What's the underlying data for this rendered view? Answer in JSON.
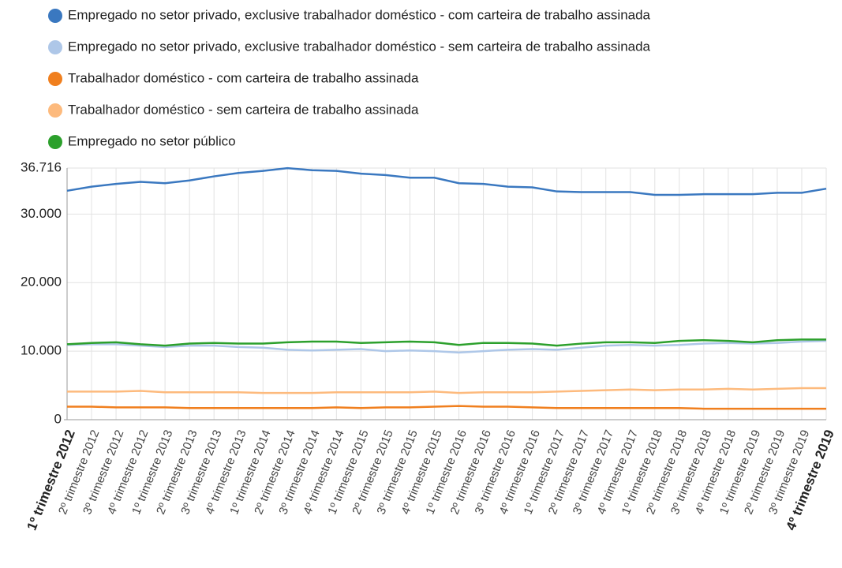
{
  "chart_data": {
    "type": "line",
    "categories": [
      "1º trimestre 2012",
      "2º trimestre 2012",
      "3º trimestre 2012",
      "4º trimestre 2012",
      "1º trimestre 2013",
      "2º trimestre 2013",
      "3º trimestre 2013",
      "4º trimestre 2013",
      "1º trimestre 2014",
      "2º trimestre 2014",
      "3º trimestre 2014",
      "4º trimestre 2014",
      "1º trimestre 2015",
      "2º trimestre 2015",
      "3º trimestre 2015",
      "4º trimestre 2015",
      "1º trimestre 2016",
      "2º trimestre 2016",
      "3º trimestre 2016",
      "4º trimestre 2016",
      "1º trimestre 2017",
      "2º trimestre 2017",
      "3º trimestre 2017",
      "4º trimestre 2017",
      "1º trimestre 2018",
      "2º trimestre 2018",
      "3º trimestre 2018",
      "4º trimestre 2018",
      "1º trimestre 2019",
      "2º trimestre 2019",
      "3º trimestre 2019",
      "4º trimestre 2019"
    ],
    "series": [
      {
        "name": "Empregado no setor privado, exclusive trabalhador doméstico - com carteira de trabalho assinada",
        "color": "#3a78c0",
        "values": [
          33400,
          34000,
          34400,
          34700,
          34500,
          34900,
          35500,
          36000,
          36300,
          36700,
          36400,
          36300,
          35900,
          35700,
          35300,
          35300,
          34500,
          34400,
          34000,
          33900,
          33300,
          33200,
          33200,
          33200,
          32800,
          32800,
          32900,
          32900,
          32900,
          33100,
          33100,
          33700
        ]
      },
      {
        "name": "Empregado no setor privado, exclusive trabalhador doméstico - sem carteira de trabalho assinada",
        "color": "#aec7e8",
        "values": [
          10900,
          11000,
          11000,
          10800,
          10600,
          10800,
          10800,
          10600,
          10500,
          10200,
          10100,
          10200,
          10300,
          10000,
          10100,
          10000,
          9800,
          10000,
          10200,
          10300,
          10200,
          10500,
          10800,
          10900,
          10800,
          10900,
          11100,
          11200,
          11100,
          11200,
          11400,
          11500
        ]
      },
      {
        "name": "Trabalhador doméstico - com carteira de trabalho assinada",
        "color": "#f07f1e",
        "values": [
          1900,
          1900,
          1800,
          1800,
          1800,
          1700,
          1700,
          1700,
          1700,
          1700,
          1700,
          1800,
          1700,
          1800,
          1800,
          1900,
          2000,
          1900,
          1900,
          1800,
          1700,
          1700,
          1700,
          1700,
          1700,
          1700,
          1600,
          1600,
          1600,
          1600,
          1600,
          1600
        ]
      },
      {
        "name": "Trabalhador doméstico - sem carteira de trabalho assinada",
        "color": "#fdba7d",
        "values": [
          4100,
          4100,
          4100,
          4200,
          4000,
          4000,
          4000,
          4000,
          3900,
          3900,
          3900,
          4000,
          4000,
          4000,
          4000,
          4100,
          3900,
          4000,
          4000,
          4000,
          4100,
          4200,
          4300,
          4400,
          4300,
          4400,
          4400,
          4500,
          4400,
          4500,
          4600,
          4600
        ]
      },
      {
        "name": "Empregado no setor público",
        "color": "#2ca02c",
        "values": [
          11000,
          11200,
          11300,
          11000,
          10800,
          11100,
          11200,
          11100,
          11100,
          11300,
          11400,
          11400,
          11200,
          11300,
          11400,
          11300,
          10900,
          11200,
          11200,
          11100,
          10800,
          11100,
          11300,
          11300,
          11200,
          11500,
          11600,
          11500,
          11300,
          11600,
          11700,
          11700
        ]
      }
    ],
    "ylim": [
      0,
      36716
    ],
    "yticks": [
      0,
      {
        "value": 10000,
        "label": "10.000"
      },
      {
        "value": 20000,
        "label": "20.000"
      },
      {
        "value": 30000,
        "label": "30.000"
      },
      {
        "value": 36716,
        "label": "36.716"
      }
    ],
    "grid": true
  }
}
